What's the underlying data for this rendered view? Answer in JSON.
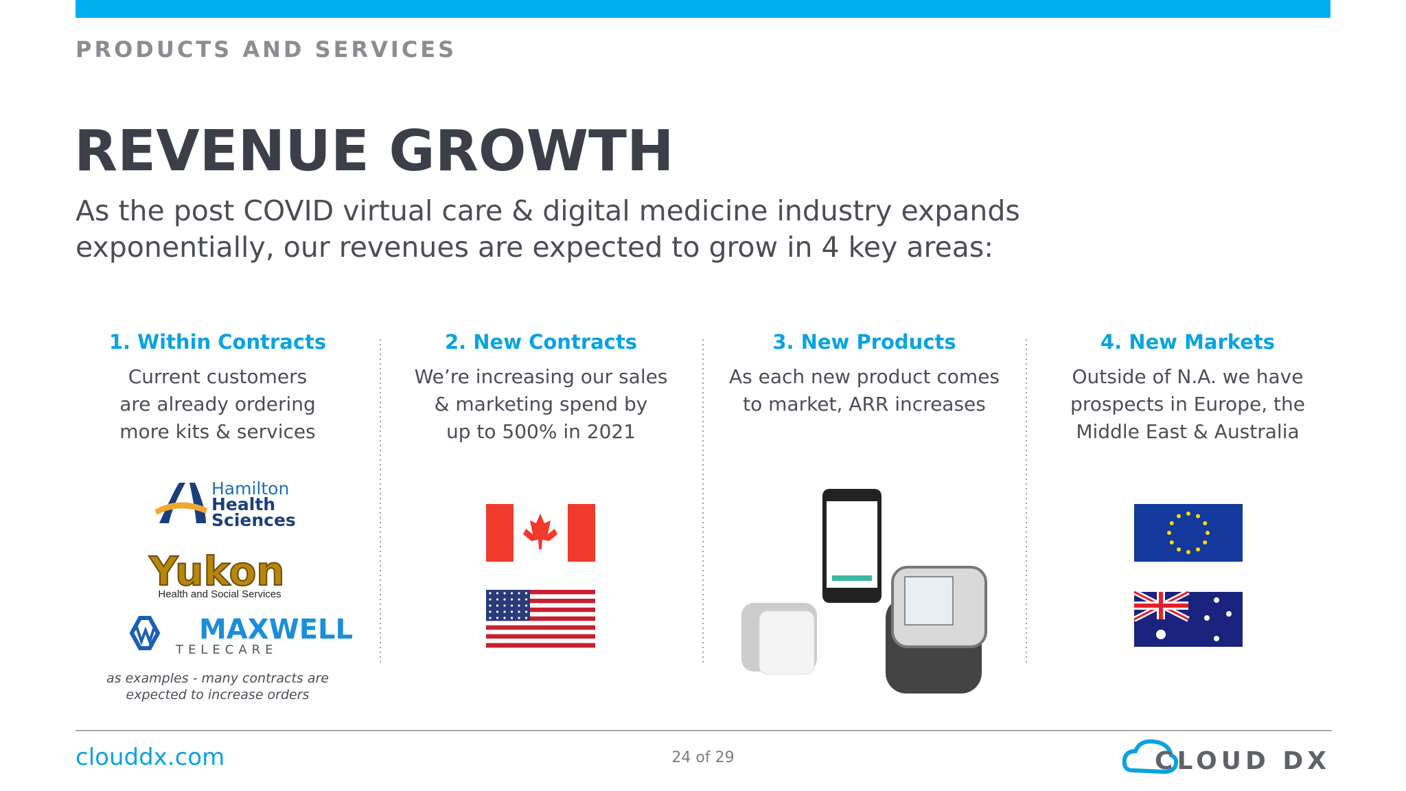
{
  "header": {
    "section": "PRODUCTS AND SERVICES",
    "title": "REVENUE GROWTH",
    "subtitle": [
      "As the post COVID virtual care & digital medicine industry expands",
      "exponentially, our revenues are expected to grow in 4 key areas:"
    ]
  },
  "columns": [
    {
      "heading": "1. Within Contracts",
      "lines": [
        "Current customers",
        "are already ordering",
        "more kits & services"
      ]
    },
    {
      "heading": "2. New Contracts",
      "lines": [
        "We’re increasing our sales",
        "& marketing spend by",
        "up to 500% in 2021"
      ]
    },
    {
      "heading": "3. New Products",
      "lines": [
        "As each new product comes",
        "to market, ARR increases"
      ]
    },
    {
      "heading": "4. New Markets",
      "lines": [
        "Outside of N.A. we have",
        "prospects in Europe, the",
        "Middle East & Australia"
      ]
    }
  ],
  "logos": {
    "hamilton": [
      "Hamilton",
      "Health",
      "Sciences"
    ],
    "yukon": "Yukon",
    "yukon_sub": "Health and Social Services",
    "maxwell": "MAXWELL",
    "maxwell_sub": "TELECARE"
  },
  "note": [
    "as examples - many contracts are",
    "expected to increase orders"
  ],
  "footer": {
    "website": "clouddx.com",
    "page": "24 of 29",
    "brand": "CLOUD DX"
  }
}
